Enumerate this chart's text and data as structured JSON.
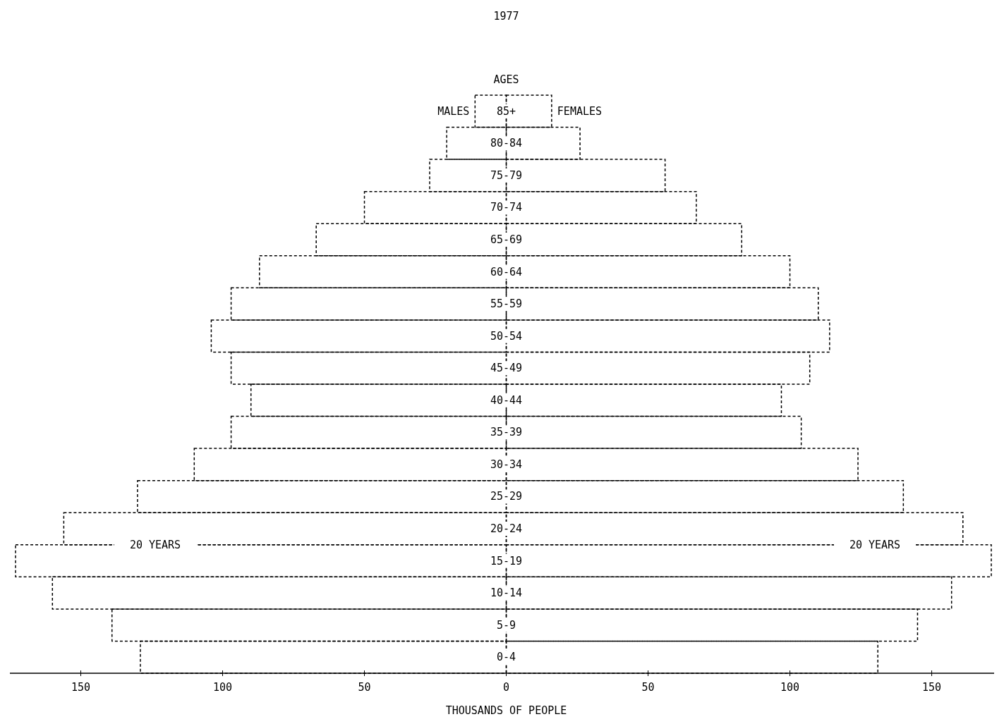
{
  "chart_data": {
    "type": "bar",
    "orientation": "horizontal",
    "title": "1977",
    "xlabel": "THOUSANDS OF PEOPLE",
    "ylabel": "AGES",
    "categories": [
      "85+",
      "80-84",
      "75-79",
      "70-74",
      "65-69",
      "60-64",
      "55-59",
      "50-54",
      "45-49",
      "40-44",
      "35-39",
      "30-34",
      "25-29",
      "20-24",
      "15-19",
      "10-14",
      "5-9",
      "0-4"
    ],
    "series": [
      {
        "name": "MALES",
        "color": "#000000",
        "values": [
          -11,
          -21,
          -27,
          -50,
          -67,
          -87,
          -97,
          -104,
          -97,
          -90,
          -97,
          -110,
          -130,
          -156,
          -173,
          -160,
          -139,
          -129
        ]
      },
      {
        "name": "FEMALES",
        "color": "#000000",
        "values": [
          16,
          26,
          56,
          67,
          83,
          100,
          110,
          114,
          107,
          97,
          104,
          124,
          140,
          161,
          171,
          157,
          145,
          131
        ]
      }
    ],
    "xlim": [
      -175,
      172
    ],
    "xticks": [
      {
        "value": -150,
        "label": "150"
      },
      {
        "value": -100,
        "label": "100"
      },
      {
        "value": -50,
        "label": "50"
      },
      0,
      50,
      100,
      150
    ],
    "annotations": [
      "20 YEARS",
      "20 YEARS"
    ]
  }
}
